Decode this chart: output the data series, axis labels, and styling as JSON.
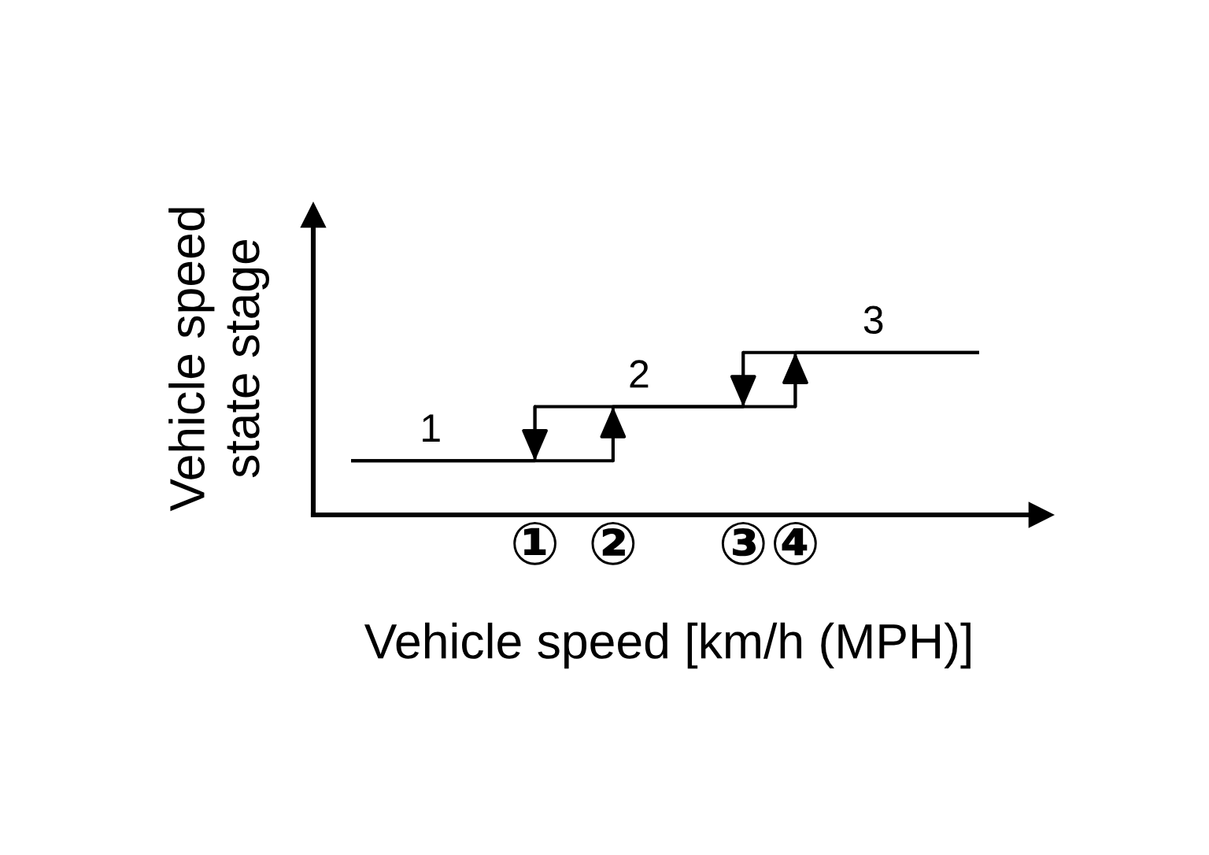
{
  "chart_data": {
    "type": "step",
    "xlabel": "Vehicle speed [km/h (MPH)]",
    "ylabel": "Vehicle speed\nstate stage",
    "categories": [
      null,
      null,
      null,
      null,
      null,
      null,
      null,
      "①",
      null,
      null,
      "②",
      null,
      null,
      null,
      null,
      "③",
      null,
      "④",
      null,
      null,
      null,
      null,
      null,
      null,
      null
    ],
    "tick_labels": "x",
    "series": [
      {
        "color": "#000000",
        "values": [
          1,
          1,
          1,
          1,
          1,
          1,
          1,
          1,
          1,
          1,
          2,
          2,
          2,
          2,
          2,
          2,
          2,
          3,
          3,
          3,
          3,
          3,
          3,
          3,
          3
        ],
        "value_labels": [
          null,
          null,
          null,
          "1",
          null,
          null,
          null,
          null,
          null,
          null,
          null,
          "2",
          null,
          null,
          null,
          null,
          null,
          null,
          null,
          null,
          "3",
          null,
          null,
          null,
          null
        ]
      },
      {
        "color": "#000000",
        "values": [
          1,
          1,
          1,
          1,
          1,
          1,
          1,
          2,
          2,
          2,
          2,
          2,
          2,
          2,
          2,
          3,
          3,
          3,
          3,
          3,
          3,
          3,
          3,
          3,
          3
        ]
      }
    ]
  }
}
